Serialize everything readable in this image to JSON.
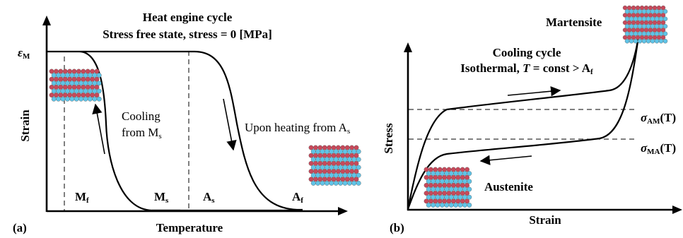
{
  "panel_a": {
    "label": "(a)",
    "title_line1": "Heat engine cycle",
    "title_line2": "Stress free state, stress = 0 [MPa]",
    "y_axis_label": "Strain",
    "x_axis_label": "Temperature",
    "epsilon_symbol": "ε",
    "epsilon_sub": "M",
    "cooling_line1": "Cooling",
    "cooling_line2": "from M",
    "cooling_sub": "s",
    "heating_text": "Upon heating from A",
    "heating_sub": "s",
    "mf_main": "M",
    "mf_sub": "f",
    "ms_main": "M",
    "ms_sub": "s",
    "as_main": "A",
    "as_sub": "s",
    "af_main": "A",
    "af_sub": "f"
  },
  "panel_b": {
    "label": "(b)",
    "title_line1": "Cooling cycle",
    "title_line2_pre": "Isothermal, ",
    "title_line2_T": "T",
    "title_line2_post": " = const > A",
    "title_line2_sub": "f",
    "y_axis_label": "Stress",
    "x_axis_label": "Strain",
    "martensite": "Martensite",
    "austenite": "Austenite",
    "sigma_am_sym": "σ",
    "sigma_am_sub": "AM",
    "sigma_am_tail": "(T)",
    "sigma_ma_sym": "σ",
    "sigma_ma_sub": "MA",
    "sigma_ma_tail": "(T)"
  },
  "colors": {
    "lattice_red": "#c8485a",
    "lattice_blue": "#5fc4e8",
    "ink": "#000000"
  }
}
